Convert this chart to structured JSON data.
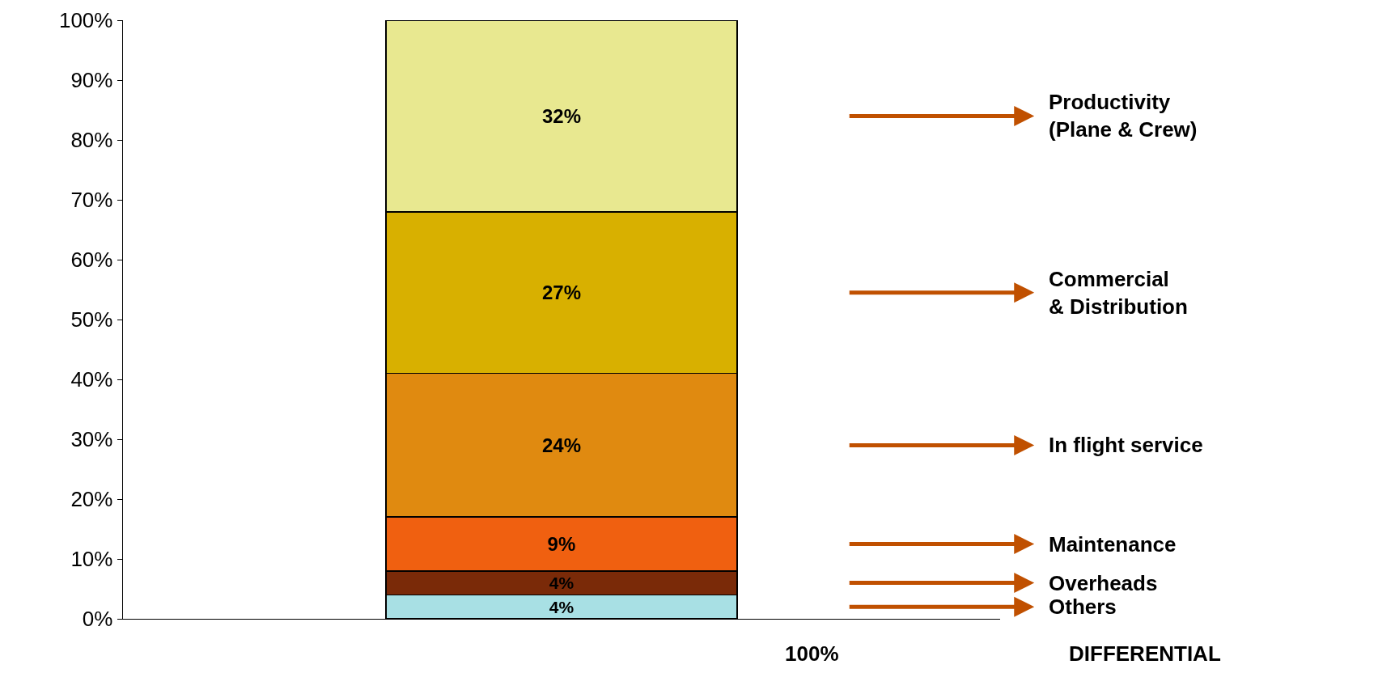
{
  "chart_data": {
    "type": "bar",
    "stacked": true,
    "categories": [
      null
    ],
    "series": [
      {
        "name": "Others",
        "color": "#a8e0e4",
        "values": [
          4
        ],
        "value_labels": [
          "4%"
        ]
      },
      {
        "name": "Overheads",
        "color": "#7a2a08",
        "values": [
          4
        ],
        "value_labels": [
          "4%"
        ]
      },
      {
        "name": "Maintenance",
        "color": "#f06010",
        "values": [
          9
        ],
        "value_labels": [
          "9%"
        ]
      },
      {
        "name": "In flight service",
        "color": "#e08a10",
        "values": [
          24
        ],
        "value_labels": [
          "24%"
        ]
      },
      {
        "name": "Commercial\n& Distribution",
        "color": "#d8b000",
        "values": [
          27
        ],
        "value_labels": [
          "27%"
        ]
      },
      {
        "name": "Productivity\n(Plane & Crew)",
        "color": "#e8e890",
        "values": [
          32
        ],
        "value_labels": [
          "32%"
        ]
      }
    ],
    "ylim": [
      0,
      100
    ],
    "yticks": [
      {
        "value": 0,
        "label": "0%"
      },
      {
        "value": 10,
        "label": "10%"
      },
      {
        "value": 20,
        "label": "20%"
      },
      {
        "value": 30,
        "label": "30%"
      },
      {
        "value": 40,
        "label": "40%"
      },
      {
        "value": 50,
        "label": "50%"
      },
      {
        "value": 60,
        "label": "60%"
      },
      {
        "value": 70,
        "label": "70%"
      },
      {
        "value": 80,
        "label": "80%"
      },
      {
        "value": 90,
        "label": "90%"
      },
      {
        "value": 100,
        "label": "100%"
      }
    ],
    "tick_labels": "y",
    "legend": false,
    "annotations": [
      "100%",
      "DIFFERENTIAL"
    ]
  }
}
